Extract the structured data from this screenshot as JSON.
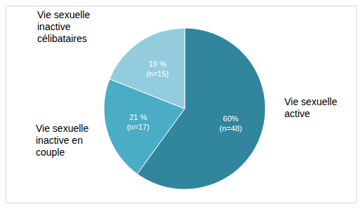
{
  "chart_data": {
    "type": "pie",
    "categories": [
      "Vie sexuelle active",
      "Vie sexuelle inactive en couple",
      "Vie sexuelle inactive célibataires"
    ],
    "values": [
      60,
      21,
      19
    ],
    "value_labels": [
      "60%",
      "21 %",
      "19 %"
    ],
    "count_labels": [
      "(n=48)",
      "(n=17)",
      "(n=15)"
    ],
    "colors": [
      "#31859c",
      "#4bacc6",
      "#93cddd"
    ]
  }
}
